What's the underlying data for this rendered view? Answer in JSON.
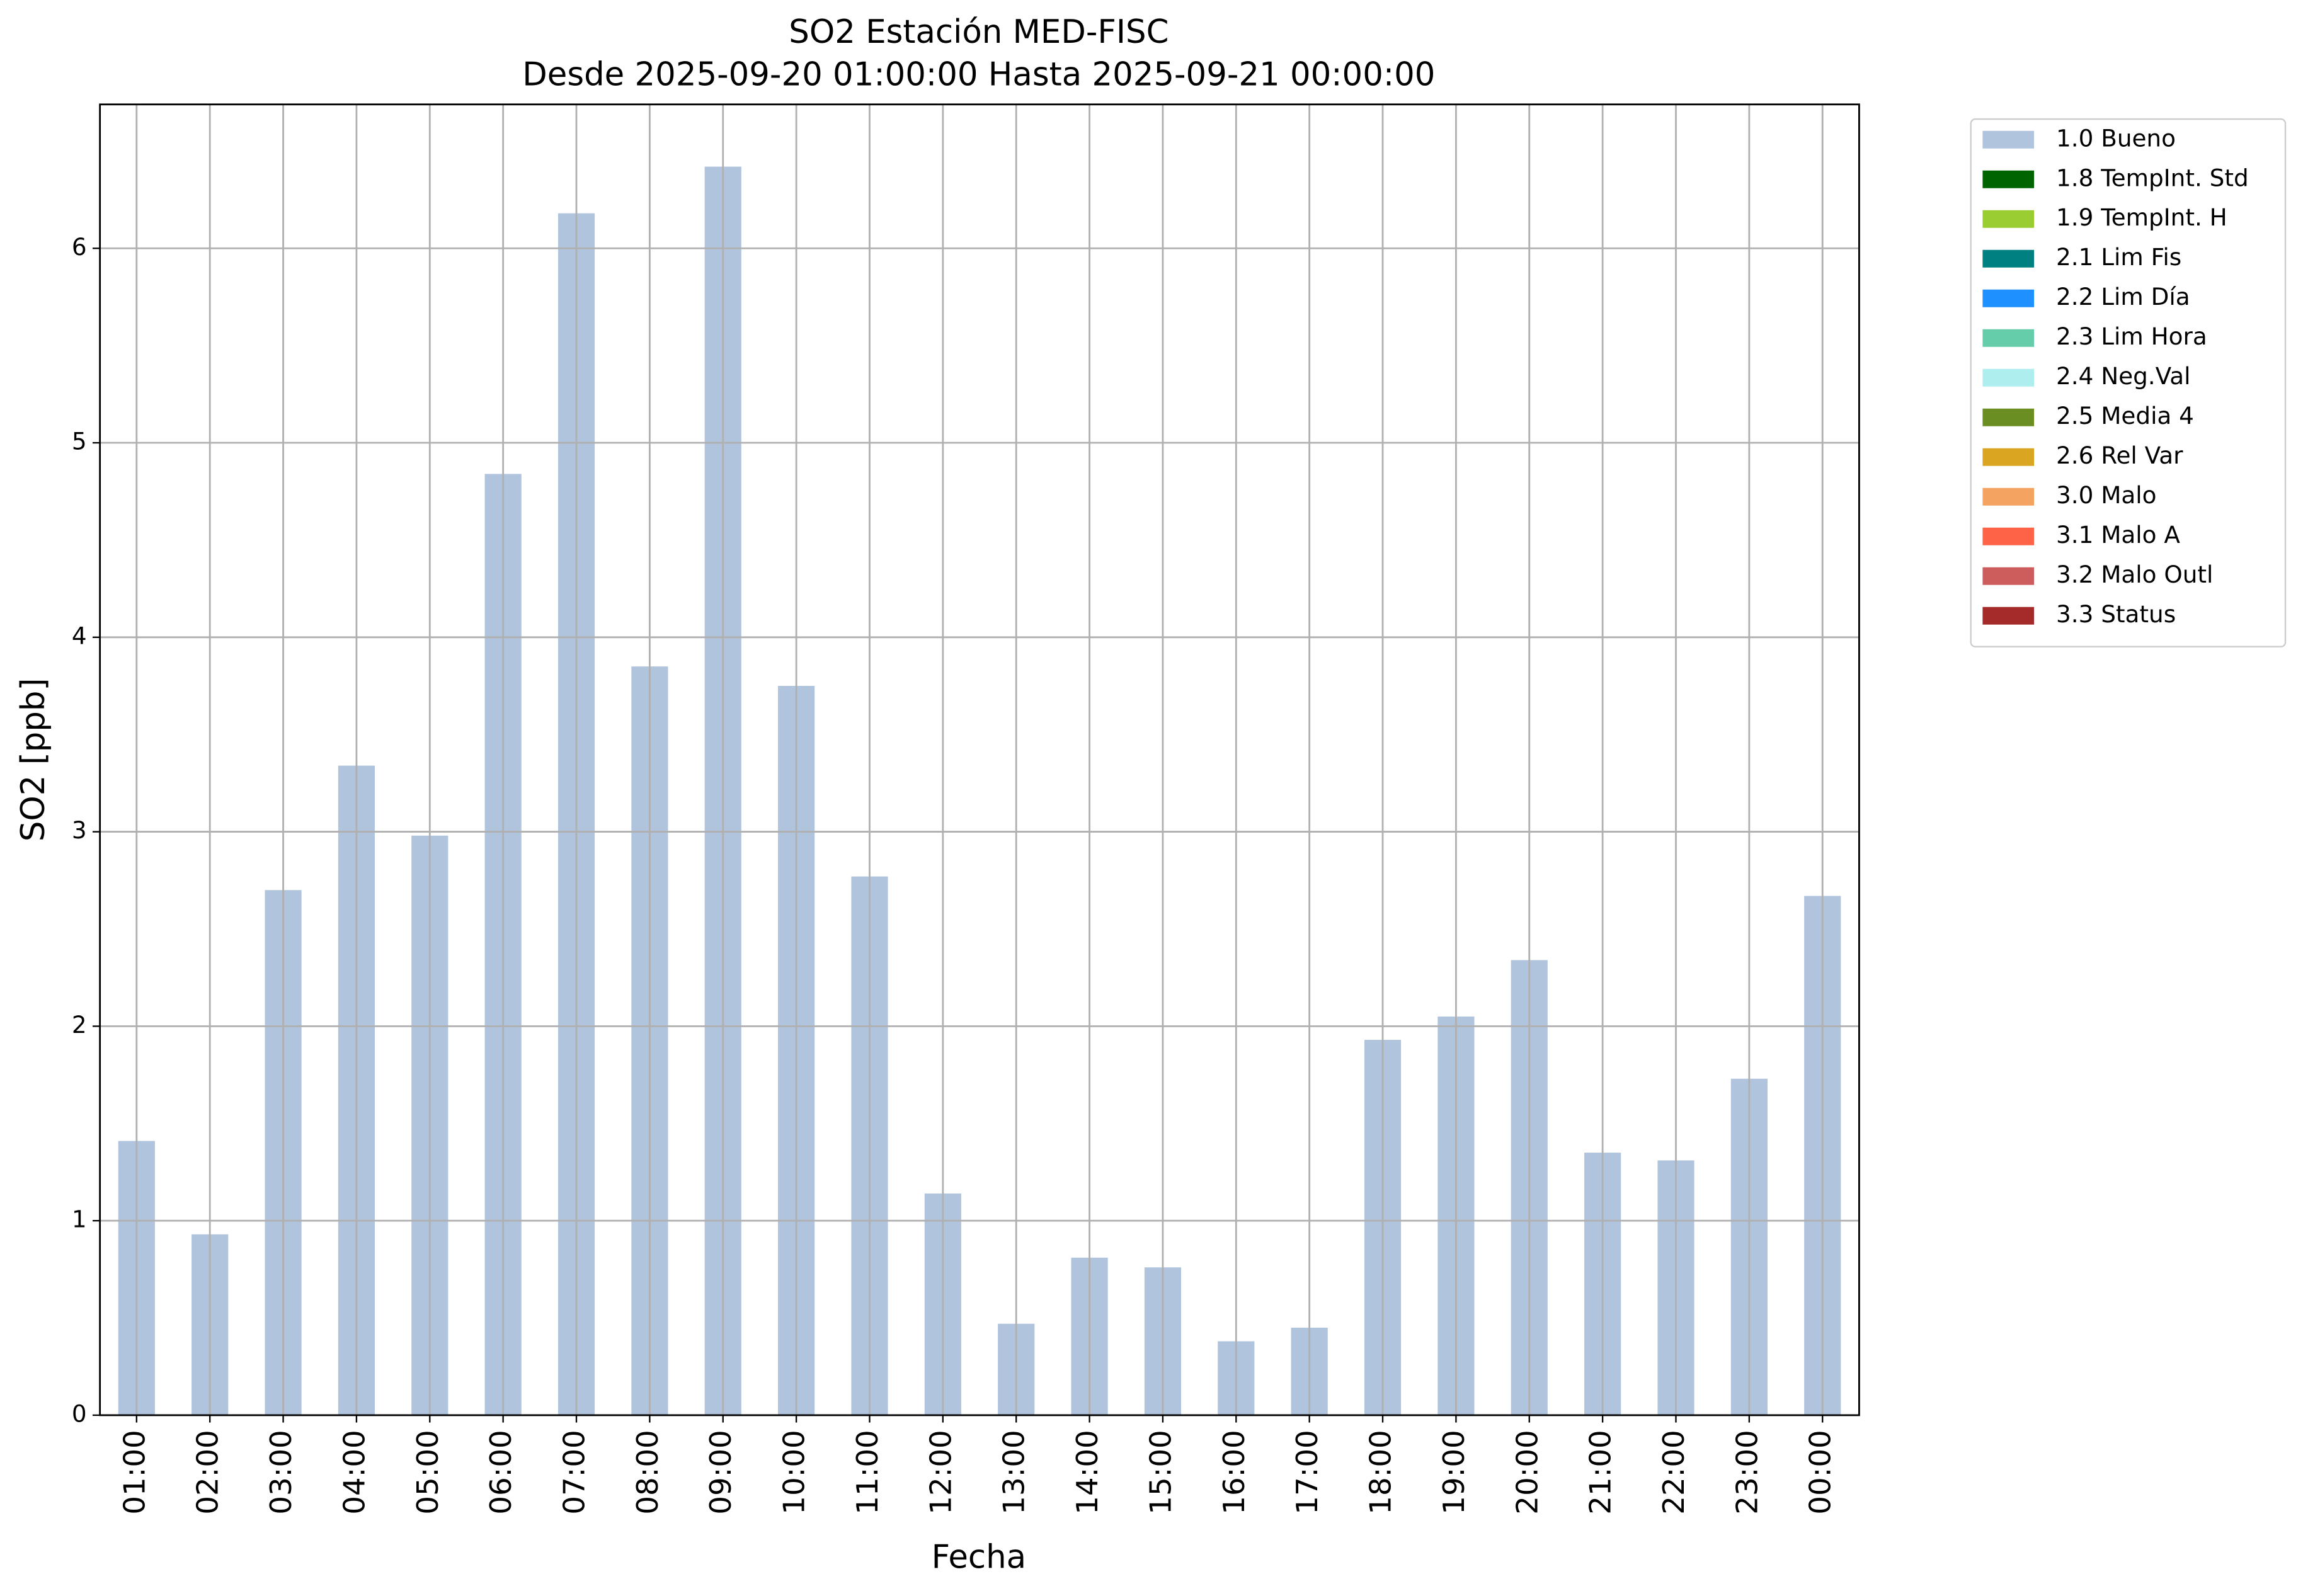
{
  "chart_data": {
    "type": "bar",
    "title": "SO2 Estación MED-FISC",
    "subtitle": "Desde 2025-09-20 01:00:00 Hasta 2025-09-21 00:00:00",
    "x_label": "Fecha",
    "y_label": "SO2 [ppb]",
    "categories": [
      "01:00",
      "02:00",
      "03:00",
      "04:00",
      "05:00",
      "06:00",
      "07:00",
      "08:00",
      "09:00",
      "10:00",
      "11:00",
      "12:00",
      "13:00",
      "14:00",
      "15:00",
      "16:00",
      "17:00",
      "18:00",
      "19:00",
      "20:00",
      "21:00",
      "22:00",
      "23:00",
      "00:00"
    ],
    "series": [
      {
        "name": "1.0 Bueno",
        "color": "#b0c4de",
        "values": [
          1.41,
          0.93,
          2.7,
          3.34,
          2.98,
          4.84,
          6.18,
          3.85,
          6.42,
          3.75,
          2.77,
          1.14,
          0.47,
          0.81,
          0.76,
          0.38,
          0.45,
          1.93,
          2.05,
          2.34,
          1.35,
          1.31,
          1.73,
          2.67
        ]
      },
      {
        "name": "1.8 TempInt. Std",
        "color": "#006400",
        "values": [
          null,
          null,
          null,
          null,
          null,
          null,
          null,
          null,
          null,
          null,
          null,
          null,
          null,
          null,
          null,
          null,
          null,
          null,
          null,
          null,
          null,
          null,
          null,
          null
        ]
      },
      {
        "name": "1.9 TempInt. H",
        "color": "#9acd32",
        "values": [
          null,
          null,
          null,
          null,
          null,
          null,
          null,
          null,
          null,
          null,
          null,
          null,
          null,
          null,
          null,
          null,
          null,
          null,
          null,
          null,
          null,
          null,
          null,
          null
        ]
      },
      {
        "name": "2.1 Lim Fis",
        "color": "#008080",
        "values": [
          null,
          null,
          null,
          null,
          null,
          null,
          null,
          null,
          null,
          null,
          null,
          null,
          null,
          null,
          null,
          null,
          null,
          null,
          null,
          null,
          null,
          null,
          null,
          null
        ]
      },
      {
        "name": "2.2 Lim Día",
        "color": "#1e90ff",
        "values": [
          null,
          null,
          null,
          null,
          null,
          null,
          null,
          null,
          null,
          null,
          null,
          null,
          null,
          null,
          null,
          null,
          null,
          null,
          null,
          null,
          null,
          null,
          null,
          null
        ]
      },
      {
        "name": "2.3 Lim Hora",
        "color": "#66cdaa",
        "values": [
          null,
          null,
          null,
          null,
          null,
          null,
          null,
          null,
          null,
          null,
          null,
          null,
          null,
          null,
          null,
          null,
          null,
          null,
          null,
          null,
          null,
          null,
          null,
          null
        ]
      },
      {
        "name": "2.4 Neg.Val",
        "color": "#afeeee",
        "values": [
          null,
          null,
          null,
          null,
          null,
          null,
          null,
          null,
          null,
          null,
          null,
          null,
          null,
          null,
          null,
          null,
          null,
          null,
          null,
          null,
          null,
          null,
          null,
          null
        ]
      },
      {
        "name": "2.5 Media 4",
        "color": "#6b8e23",
        "values": [
          null,
          null,
          null,
          null,
          null,
          null,
          null,
          null,
          null,
          null,
          null,
          null,
          null,
          null,
          null,
          null,
          null,
          null,
          null,
          null,
          null,
          null,
          null,
          null
        ]
      },
      {
        "name": "2.6 Rel Var",
        "color": "#daa520",
        "values": [
          null,
          null,
          null,
          null,
          null,
          null,
          null,
          null,
          null,
          null,
          null,
          null,
          null,
          null,
          null,
          null,
          null,
          null,
          null,
          null,
          null,
          null,
          null,
          null
        ]
      },
      {
        "name": "3.0 Malo",
        "color": "#f4a460",
        "values": [
          null,
          null,
          null,
          null,
          null,
          null,
          null,
          null,
          null,
          null,
          null,
          null,
          null,
          null,
          null,
          null,
          null,
          null,
          null,
          null,
          null,
          null,
          null,
          null
        ]
      },
      {
        "name": "3.1 Malo A",
        "color": "#ff6347",
        "values": [
          null,
          null,
          null,
          null,
          null,
          null,
          null,
          null,
          null,
          null,
          null,
          null,
          null,
          null,
          null,
          null,
          null,
          null,
          null,
          null,
          null,
          null,
          null,
          null
        ]
      },
      {
        "name": "3.2 Malo Outl",
        "color": "#cd5c5c",
        "values": [
          null,
          null,
          null,
          null,
          null,
          null,
          null,
          null,
          null,
          null,
          null,
          null,
          null,
          null,
          null,
          null,
          null,
          null,
          null,
          null,
          null,
          null,
          null,
          null
        ]
      },
      {
        "name": "3.3 Status",
        "color": "#a52a2a",
        "values": [
          null,
          null,
          null,
          null,
          null,
          null,
          null,
          null,
          null,
          null,
          null,
          null,
          null,
          null,
          null,
          null,
          null,
          null,
          null,
          null,
          null,
          null,
          null,
          null
        ]
      }
    ],
    "stacked": true,
    "ylim": [
      0,
      6.74
    ],
    "yticks": [
      0,
      1,
      2,
      3,
      4,
      5,
      6
    ],
    "grid": true,
    "legend": "outside-upper-right"
  }
}
